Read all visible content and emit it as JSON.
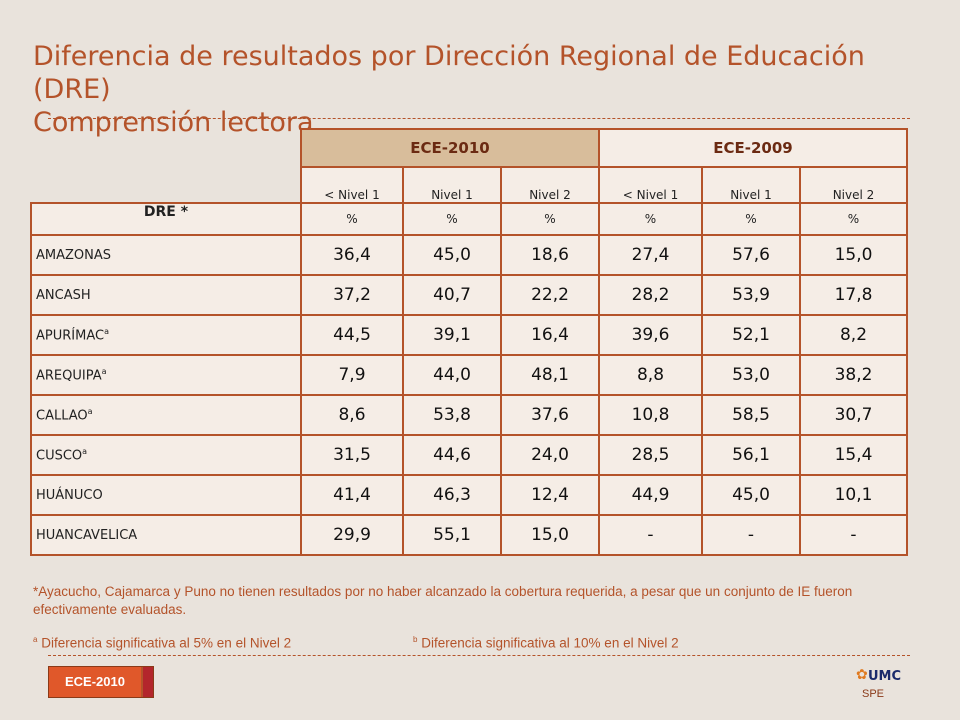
{
  "title": {
    "line1": "Diferencia de resultados por Dirección Regional de Educación (DRE)",
    "line2": "Comprensión lectora"
  },
  "table": {
    "groups": [
      "ECE-2010",
      "ECE-2009"
    ],
    "levels": [
      "< Nivel 1",
      "Nivel 1",
      "Nivel 2",
      "< Nivel 1",
      "Nivel 1",
      "Nivel 2"
    ],
    "unit": "%",
    "row_header": "DRE *",
    "superscript": "a",
    "rows": [
      {
        "name": "AMAZONAS",
        "sup": "",
        "values": [
          "36,4",
          "45,0",
          "18,6",
          "27,4",
          "57,6",
          "15,0"
        ]
      },
      {
        "name": "ANCASH",
        "sup": "",
        "values": [
          "37,2",
          "40,7",
          "22,2",
          "28,2",
          "53,9",
          "17,8"
        ]
      },
      {
        "name": "APURÍMAC",
        "sup": "a",
        "values": [
          "44,5",
          "39,1",
          "16,4",
          "39,6",
          "52,1",
          "8,2"
        ]
      },
      {
        "name": "AREQUIPA",
        "sup": "a",
        "values": [
          "7,9",
          "44,0",
          "48,1",
          "8,8",
          "53,0",
          "38,2"
        ]
      },
      {
        "name": "CALLAO",
        "sup": "a",
        "values": [
          "8,6",
          "53,8",
          "37,6",
          "10,8",
          "58,5",
          "30,7"
        ]
      },
      {
        "name": "CUSCO",
        "sup": "a",
        "values": [
          "31,5",
          "44,6",
          "24,0",
          "28,5",
          "56,1",
          "15,4"
        ]
      },
      {
        "name": "HUÁNUCO",
        "sup": "",
        "values": [
          "41,4",
          "46,3",
          "12,4",
          "44,9",
          "45,0",
          "10,1"
        ]
      },
      {
        "name": "HUANCAVELICA",
        "sup": "",
        "values": [
          "29,9",
          "55,1",
          "15,0",
          "-",
          "-",
          "-"
        ]
      }
    ]
  },
  "notes": {
    "footnote": "*Ayacucho, Cajamarca y Puno no tienen resultados por no haber alcanzado la cobertura requerida, a pesar que un conjunto de IE fueron efectivamente evaluadas.",
    "sig_a_mark": "a",
    "sig_a": "Diferencia significativa al 5% en el Nivel 2",
    "sig_b_mark": "b",
    "sig_b": "Diferencia significativa al 10% en el Nivel 2"
  },
  "footer": {
    "badge": "ECE-2010",
    "logo_text": "UMC",
    "logo_sub": "SPE",
    "logo_icon": "umc-logo-icon"
  },
  "colors": {
    "background": "#e9e3dc",
    "accent": "#b4532a",
    "header_2010": "#d8bd9b",
    "badge": "#e0582a"
  }
}
